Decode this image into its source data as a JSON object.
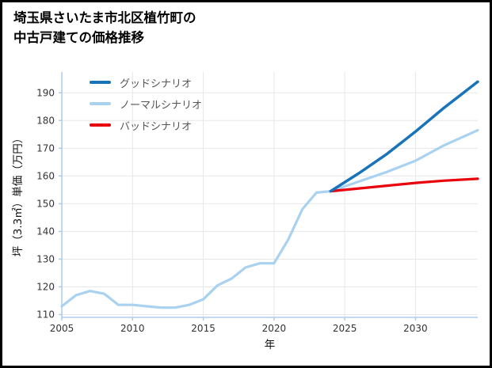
{
  "page": {
    "background": "#ffffff",
    "border_color": "#000000"
  },
  "title": {
    "line1": "埼玉県さいたま市北区植竹町の",
    "line2": "中古戸建ての価格推移"
  },
  "chart_data": {
    "type": "line",
    "title": "埼玉県さいたま市北区植竹町の中古戸建ての価格推移",
    "xlabel": "年",
    "ylabel": "坪（3.3㎡）単価（万円）",
    "xlim": [
      2005,
      2034.4
    ],
    "ylim": [
      109,
      197.5
    ],
    "xticks": [
      2005,
      2010,
      2015,
      2020,
      2025,
      2030
    ],
    "yticks": [
      110,
      120,
      130,
      140,
      150,
      160,
      170,
      180,
      190
    ],
    "grid": true,
    "grid_color": "#e7e7e7",
    "spine_color": "#aecbe8",
    "tick_label_color": "#333333",
    "legend_position": "upper-left",
    "series": [
      {
        "id": "good",
        "name": "グッドシナリオ",
        "color": "#1873b9",
        "line_width": 3.5,
        "x": [
          2024,
          2026,
          2028,
          2030,
          2032,
          2034.4
        ],
        "y": [
          154.5,
          161,
          168,
          176,
          184.5,
          194
        ]
      },
      {
        "id": "normal",
        "name": "ノーマルシナリオ",
        "color": "#a9d2f0",
        "line_width": 3.2,
        "x": [
          2005,
          2006,
          2007,
          2008,
          2009,
          2010,
          2011,
          2012,
          2013,
          2014,
          2015,
          2016,
          2017,
          2018,
          2019,
          2020,
          2021,
          2022,
          2023,
          2024,
          2026,
          2028,
          2030,
          2032,
          2034.4
        ],
        "y": [
          113,
          117,
          118.5,
          117.5,
          113.5,
          113.5,
          113,
          112.5,
          112.5,
          113.5,
          115.5,
          120.5,
          123,
          127,
          128.5,
          128.5,
          137,
          148,
          154,
          154.5,
          158,
          161.5,
          165.5,
          171,
          176.5
        ]
      },
      {
        "id": "bad",
        "name": "バッドシナリオ",
        "color": "#e8000b",
        "line_width": 3.2,
        "x": [
          2024,
          2026,
          2028,
          2030,
          2032,
          2034.4
        ],
        "y": [
          154.5,
          155.5,
          156.5,
          157.5,
          158.3,
          159
        ]
      }
    ]
  }
}
